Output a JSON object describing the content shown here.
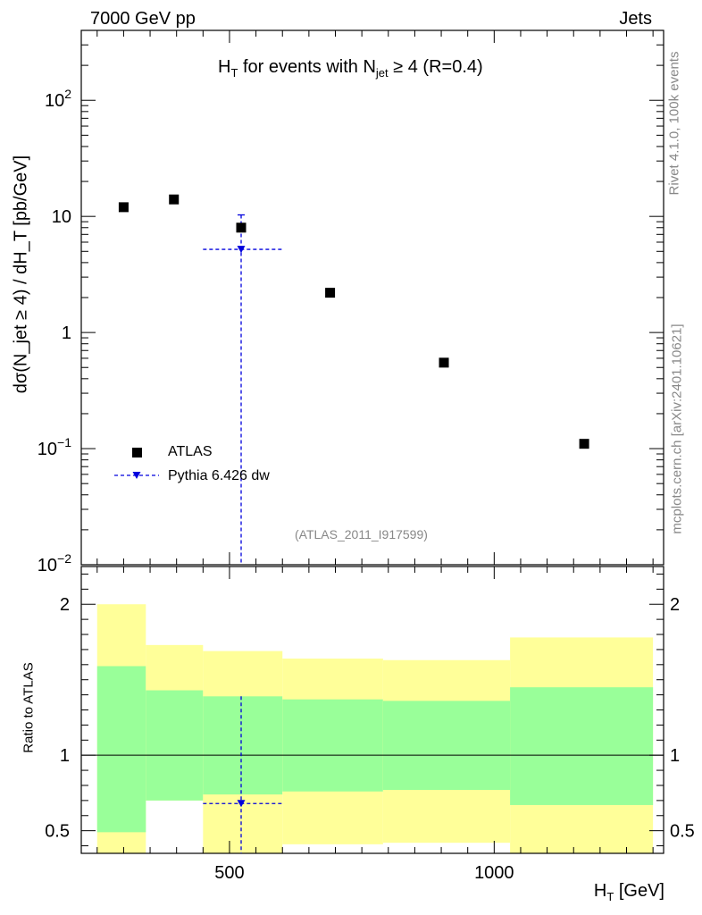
{
  "header": {
    "left": "7000 GeV pp",
    "right": "Jets"
  },
  "side_text": {
    "rivet": "Rivet 4.1.0,  100k events",
    "mcplots": "mcplots.cern.ch [arXiv:2401.10621]"
  },
  "chart_data": {
    "type": "scatter",
    "title": {
      "prefix": "H",
      "prefix_sub": "T",
      "mid": " for events with N",
      "mid_sub": "jet",
      "suffix": " ≥ 4 (R=0.4)"
    },
    "analysis_id": "(ATLAS_2011_I917599)",
    "xlabel": {
      "main": "H",
      "sub": "T",
      "unit": " [GeV]"
    },
    "ylabel": "dσ(N_jet ≥ 4) / dH_T [pb/GeV]",
    "ratio_ylabel": "Ratio to ATLAS",
    "xlim": [
      220,
      1320
    ],
    "ylim": [
      0.01,
      400
    ],
    "ratio_ylim": [
      0.35,
      2.25
    ],
    "x_ticks": [
      500,
      1000
    ],
    "x_tick_labels": [
      "500",
      "1000"
    ],
    "y_ticks": [
      {
        "value": 0.01,
        "base": "10",
        "exp": "−2"
      },
      {
        "value": 0.1,
        "base": "10",
        "exp": "−1"
      },
      {
        "value": 1,
        "base": "1",
        "exp": ""
      },
      {
        "value": 10,
        "base": "10",
        "exp": ""
      },
      {
        "value": 100,
        "base": "10",
        "exp": "2"
      }
    ],
    "ratio_ticks": [
      0.5,
      1,
      2
    ],
    "ratio_tick_labels": [
      "0.5",
      "1",
      "2"
    ],
    "legend": [
      {
        "name": "ATLAS",
        "marker": "square",
        "color": "#000000"
      },
      {
        "name": "Pythia 6.426 dw",
        "marker": "triangle-down-dashed",
        "color": "#0000dd"
      }
    ],
    "series": [
      {
        "name": "ATLAS",
        "x": [
          300,
          395,
          522,
          690,
          905,
          1170
        ],
        "y": [
          12,
          14,
          8,
          2.2,
          0.55,
          0.11
        ]
      },
      {
        "name": "Pythia 6.426 dw",
        "x": [
          522
        ],
        "y": [
          5.2
        ],
        "xerr": [
          [
            450,
            600
          ]
        ],
        "yerr": [
          [
            0.001,
            10.3
          ]
        ]
      }
    ],
    "ratio_bands": [
      {
        "x": [
          250,
          342
        ],
        "yellow": [
          0.3,
          2.0
        ],
        "green": [
          0.49,
          1.59
        ]
      },
      {
        "x": [
          342,
          450
        ],
        "yellow": [
          0.7,
          1.73
        ],
        "green": [
          0.7,
          1.43
        ]
      },
      {
        "x": [
          450,
          600
        ],
        "yellow": [
          0.3,
          1.69
        ],
        "green": [
          0.74,
          1.39
        ]
      },
      {
        "x": [
          600,
          790
        ],
        "yellow": [
          0.41,
          1.64
        ],
        "green": [
          0.76,
          1.37
        ]
      },
      {
        "x": [
          790,
          1030
        ],
        "yellow": [
          0.42,
          1.63
        ],
        "green": [
          0.77,
          1.36
        ]
      },
      {
        "x": [
          1030,
          1300
        ],
        "yellow": [
          0.3,
          1.78
        ],
        "green": [
          0.67,
          1.45
        ]
      }
    ],
    "ratio_points": [
      {
        "x": 522,
        "y": 0.68,
        "xerr": [
          450,
          600
        ],
        "yerr": [
          0.3,
          1.39
        ]
      }
    ],
    "colors": {
      "yellow_band": "#ffff99",
      "green_band": "#99ff99",
      "mc": "#0000dd",
      "data": "#000000"
    }
  }
}
